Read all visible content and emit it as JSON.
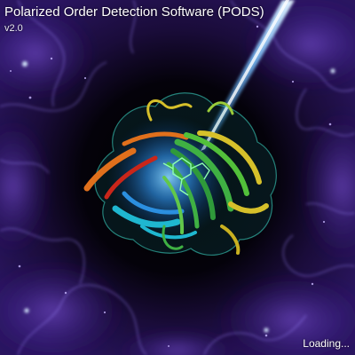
{
  "splash": {
    "title": "Polarized Order Detection Software (PODS)",
    "version": "v2.0",
    "status": "Loading..."
  },
  "artwork": {
    "subject": "protein-ribbon-illustration",
    "background": "purple-nebula-cells",
    "colors": {
      "background": "#05030e",
      "nebula": "#5a2bb0",
      "glow": "#3a9cff",
      "beam": "#6fb8ff",
      "ribbon_green": "#3fb043",
      "ribbon_yellow": "#d6c02a",
      "ribbon_orange": "#e0701c",
      "ribbon_red": "#c9261a",
      "ribbon_cyan": "#1fb7d0",
      "surface": "#3fe3d0"
    }
  }
}
